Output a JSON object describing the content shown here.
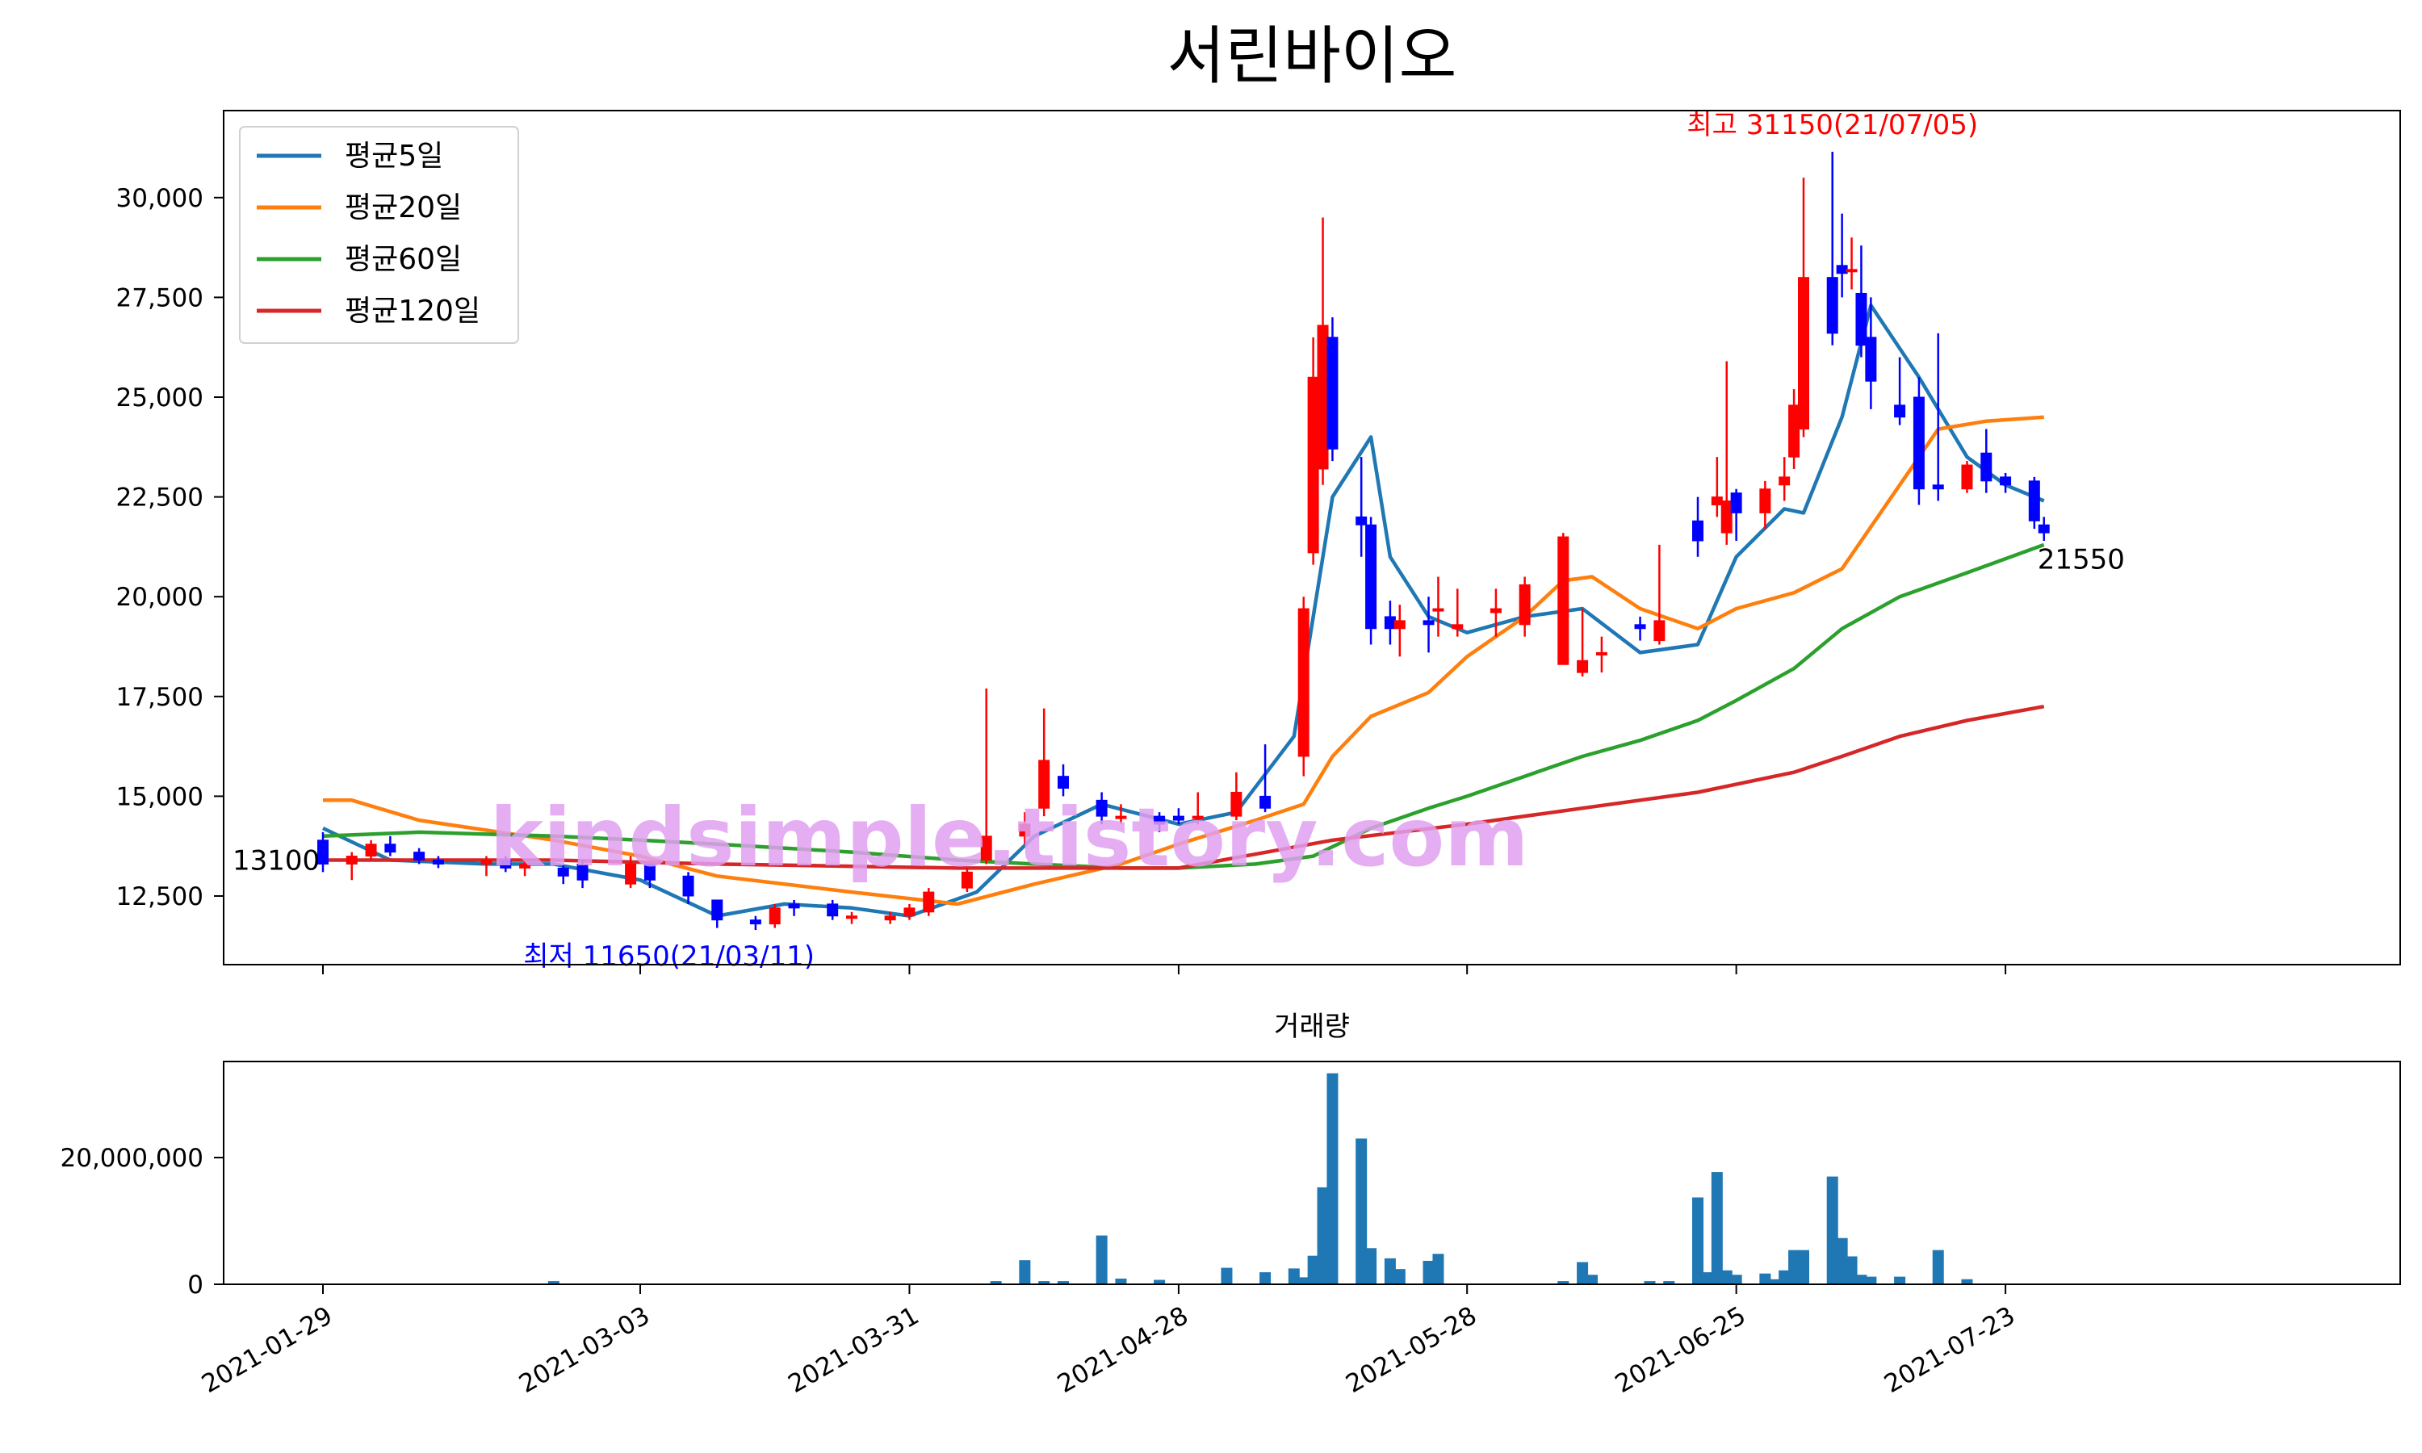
{
  "chart_data": [
    {
      "type": "candlestick",
      "title": "서린바이오",
      "xlabel": "",
      "ylabel": "",
      "ylim": [
        10650,
        32000
      ],
      "yticks": [
        12500,
        15000,
        17500,
        20000,
        22500,
        25000,
        27500,
        30000
      ],
      "ytick_labels": [
        "12,500",
        "15,000",
        "17,500",
        "20,000",
        "22,500",
        "25,000",
        "27,500",
        "30,000"
      ],
      "xticks": [
        "2021-01-29",
        "2021-03-03",
        "2021-03-31",
        "2021-04-28",
        "2021-05-28",
        "2021-06-25",
        "2021-07-23"
      ],
      "grid": false,
      "legend_position": "top-left",
      "colors": {
        "up": "#ff0000",
        "down": "#0000ff"
      },
      "series": [
        {
          "name": "평균5일",
          "color": "#1f77b4",
          "x": [
            "2021-01-29",
            "2021-02-05",
            "2021-02-15",
            "2021-02-22",
            "2021-03-03",
            "2021-03-11",
            "2021-03-18",
            "2021-03-25",
            "2021-03-31",
            "2021-04-07",
            "2021-04-13",
            "2021-04-20",
            "2021-04-28",
            "2021-05-04",
            "2021-05-10",
            "2021-05-14",
            "2021-05-18",
            "2021-05-20",
            "2021-05-24",
            "2021-05-28",
            "2021-06-03",
            "2021-06-09",
            "2021-06-15",
            "2021-06-21",
            "2021-06-25",
            "2021-06-30",
            "2021-07-02",
            "2021-07-06",
            "2021-07-09",
            "2021-07-14",
            "2021-07-19",
            "2021-07-23",
            "2021-07-27"
          ],
          "values": [
            14200,
            13400,
            13300,
            13300,
            12900,
            12000,
            12300,
            12200,
            12000,
            12600,
            14000,
            14800,
            14300,
            14600,
            16500,
            22500,
            24000,
            21000,
            19500,
            19100,
            19500,
            19700,
            18600,
            18800,
            21000,
            22200,
            22100,
            24500,
            27300,
            25500,
            23500,
            22800,
            22400
          ]
        },
        {
          "name": "평균20일",
          "color": "#ff7f0e",
          "x": [
            "2021-01-29",
            "2021-02-01",
            "2021-02-08",
            "2021-02-22",
            "2021-03-03",
            "2021-03-11",
            "2021-03-25",
            "2021-04-05",
            "2021-04-13",
            "2021-04-22",
            "2021-04-28",
            "2021-05-06",
            "2021-05-11",
            "2021-05-14",
            "2021-05-18",
            "2021-05-24",
            "2021-05-28",
            "2021-06-03",
            "2021-06-07",
            "2021-06-10",
            "2021-06-15",
            "2021-06-21",
            "2021-06-25",
            "2021-07-01",
            "2021-07-06",
            "2021-07-12",
            "2021-07-16",
            "2021-07-21",
            "2021-07-27"
          ],
          "values": [
            14900,
            14900,
            14400,
            13900,
            13500,
            13000,
            12600,
            12300,
            12800,
            13300,
            13800,
            14400,
            14800,
            16000,
            17000,
            17600,
            18500,
            19500,
            20400,
            20500,
            19700,
            19200,
            19700,
            20100,
            20700,
            22800,
            24200,
            24400,
            24500
          ]
        },
        {
          "name": "평균60일",
          "color": "#2ca02c",
          "x": [
            "2021-01-29",
            "2021-02-08",
            "2021-02-22",
            "2021-03-03",
            "2021-03-11",
            "2021-03-25",
            "2021-04-05",
            "2021-04-13",
            "2021-04-22",
            "2021-04-28",
            "2021-05-06",
            "2021-05-12",
            "2021-05-18",
            "2021-05-24",
            "2021-05-28",
            "2021-06-03",
            "2021-06-09",
            "2021-06-15",
            "2021-06-21",
            "2021-06-25",
            "2021-07-01",
            "2021-07-06",
            "2021-07-12",
            "2021-07-19",
            "2021-07-27"
          ],
          "values": [
            14000,
            14100,
            14000,
            13900,
            13800,
            13600,
            13400,
            13300,
            13200,
            13200,
            13300,
            13500,
            14200,
            14700,
            15000,
            15500,
            16000,
            16400,
            16900,
            17400,
            18200,
            19200,
            20000,
            20600,
            21300
          ]
        },
        {
          "name": "평균120일",
          "color": "#d62728",
          "x": [
            "2021-01-29",
            "2021-02-22",
            "2021-03-11",
            "2021-04-05",
            "2021-04-28",
            "2021-05-14",
            "2021-05-28",
            "2021-06-09",
            "2021-06-21",
            "2021-06-25",
            "2021-07-01",
            "2021-07-06",
            "2021-07-12",
            "2021-07-19",
            "2021-07-27"
          ],
          "values": [
            13400,
            13400,
            13300,
            13200,
            13200,
            13900,
            14300,
            14700,
            15100,
            15300,
            15600,
            16000,
            16500,
            16900,
            17250
          ]
        }
      ],
      "candles": {
        "dates": [
          "2021-01-29",
          "2021-02-01",
          "2021-02-03",
          "2021-02-05",
          "2021-02-08",
          "2021-02-10",
          "2021-02-15",
          "2021-02-17",
          "2021-02-19",
          "2021-02-23",
          "2021-02-25",
          "2021-03-02",
          "2021-03-04",
          "2021-03-08",
          "2021-03-11",
          "2021-03-15",
          "2021-03-17",
          "2021-03-19",
          "2021-03-23",
          "2021-03-25",
          "2021-03-29",
          "2021-03-31",
          "2021-04-02",
          "2021-04-06",
          "2021-04-08",
          "2021-04-12",
          "2021-04-14",
          "2021-04-16",
          "2021-04-20",
          "2021-04-22",
          "2021-04-26",
          "2021-04-28",
          "2021-04-30",
          "2021-05-04",
          "2021-05-07",
          "2021-05-11",
          "2021-05-12",
          "2021-05-13",
          "2021-05-14",
          "2021-05-17",
          "2021-05-18",
          "2021-05-20",
          "2021-05-21",
          "2021-05-24",
          "2021-05-25",
          "2021-05-27",
          "2021-05-31",
          "2021-06-03",
          "2021-06-07",
          "2021-06-09",
          "2021-06-11",
          "2021-06-15",
          "2021-06-17",
          "2021-06-21",
          "2021-06-23",
          "2021-06-24",
          "2021-06-25",
          "2021-06-28",
          "2021-06-30",
          "2021-07-01",
          "2021-07-02",
          "2021-07-05",
          "2021-07-06",
          "2021-07-07",
          "2021-07-08",
          "2021-07-09",
          "2021-07-12",
          "2021-07-14",
          "2021-07-16",
          "2021-07-19",
          "2021-07-21",
          "2021-07-23",
          "2021-07-26",
          "2021-07-27"
        ],
        "open": [
          13900,
          13300,
          13500,
          13800,
          13600,
          13400,
          13300,
          13400,
          13200,
          13200,
          13300,
          12800,
          13300,
          13000,
          12400,
          11900,
          11800,
          12300,
          12300,
          12000,
          11900,
          12000,
          12100,
          12700,
          13400,
          14000,
          14700,
          15500,
          14900,
          14500,
          14500,
          14500,
          14500,
          14500,
          15000,
          16000,
          21100,
          23200,
          26500,
          22000,
          21800,
          19500,
          19200,
          19400,
          19700,
          19200,
          19600,
          19300,
          18300,
          18100,
          18600,
          19300,
          18900,
          21900,
          22300,
          21600,
          22600,
          22100,
          22800,
          23500,
          24200,
          28000,
          28300,
          28200,
          27600,
          26500,
          24800,
          25000,
          22800,
          22700,
          23600,
          23000,
          22900,
          21800
        ],
        "close": [
          13300,
          13500,
          13800,
          13600,
          13400,
          13300,
          13400,
          13200,
          13300,
          13000,
          12900,
          13300,
          12900,
          12500,
          11900,
          11800,
          12200,
          12200,
          12000,
          12000,
          12000,
          12200,
          12600,
          13100,
          14000,
          14300,
          15900,
          15200,
          14500,
          14500,
          14300,
          14400,
          14500,
          15100,
          14700,
          19700,
          25500,
          26800,
          23700,
          21800,
          19200,
          19200,
          19400,
          19300,
          19700,
          19300,
          19700,
          20300,
          21500,
          18400,
          18600,
          19200,
          19400,
          21400,
          22500,
          22400,
          22100,
          22700,
          23000,
          24800,
          28000,
          26600,
          28100,
          28200,
          26300,
          25400,
          24500,
          22700,
          22700,
          23300,
          22900,
          22800,
          21900,
          21600
        ],
        "high": [
          14100,
          13600,
          13900,
          14000,
          13700,
          13500,
          13500,
          13500,
          13400,
          13300,
          13400,
          13500,
          13300,
          13100,
          12400,
          12000,
          12300,
          12400,
          12400,
          12100,
          12100,
          12300,
          12700,
          13200,
          17700,
          14600,
          17200,
          15800,
          15100,
          14800,
          14600,
          14700,
          15100,
          15600,
          16300,
          20000,
          26500,
          29500,
          27000,
          23500,
          22000,
          19900,
          19800,
          20000,
          20500,
          20200,
          20200,
          20500,
          21600,
          19700,
          19000,
          19500,
          21300,
          22500,
          23500,
          25900,
          22700,
          22900,
          23500,
          25200,
          30500,
          31150,
          29600,
          29000,
          28800,
          27500,
          26000,
          25500,
          26600,
          23400,
          24200,
          23100,
          23000,
          22000
        ],
        "low": [
          13100,
          12900,
          13400,
          13500,
          13300,
          13200,
          13000,
          13100,
          13000,
          12800,
          12700,
          12700,
          12700,
          12300,
          11700,
          11650,
          11700,
          12000,
          11900,
          11800,
          11800,
          11900,
          12000,
          12600,
          13300,
          13800,
          14500,
          15000,
          14300,
          14300,
          14100,
          14300,
          14300,
          14400,
          14600,
          15500,
          20800,
          22800,
          23400,
          21000,
          18800,
          18800,
          18500,
          18600,
          19000,
          19000,
          19000,
          19000,
          18300,
          18000,
          18100,
          18900,
          18800,
          21000,
          22000,
          21300,
          21400,
          21700,
          22400,
          23200,
          24000,
          26300,
          27500,
          27700,
          26000,
          24700,
          24300,
          22300,
          22400,
          22600,
          22600,
          22600,
          21700,
          21400
        ]
      },
      "annotations": [
        {
          "text": "최고 31150(21/07/05)",
          "x": "2021-07-05",
          "y": 31150,
          "color": "#ff0000"
        },
        {
          "text": "최저 11650(21/03/11)",
          "x": "2021-03-11",
          "y": 11650,
          "color": "#0000ff"
        },
        {
          "text": "13100",
          "x": "2021-01-29",
          "y": 13100,
          "color": "#000000"
        },
        {
          "text": "21550",
          "x": "2021-07-27",
          "y": 21550,
          "color": "#000000"
        }
      ],
      "watermark": "kindsimple.tistory.com"
    },
    {
      "type": "bar",
      "title": "거래량",
      "ylim": [
        0,
        34800000
      ],
      "yticks": [
        0,
        20000000
      ],
      "ytick_labels": [
        "0",
        "20,000,000"
      ],
      "color": "#1f77b4",
      "x": [
        "2021-02-22",
        "2021-04-09",
        "2021-04-12",
        "2021-04-14",
        "2021-04-16",
        "2021-04-20",
        "2021-04-22",
        "2021-04-26",
        "2021-05-03",
        "2021-05-07",
        "2021-05-10",
        "2021-05-11",
        "2021-05-12",
        "2021-05-13",
        "2021-05-14",
        "2021-05-17",
        "2021-05-18",
        "2021-05-20",
        "2021-05-21",
        "2021-05-24",
        "2021-05-25",
        "2021-06-07",
        "2021-06-09",
        "2021-06-10",
        "2021-06-16",
        "2021-06-18",
        "2021-06-21",
        "2021-06-22",
        "2021-06-23",
        "2021-06-24",
        "2021-06-25",
        "2021-06-28",
        "2021-06-29",
        "2021-06-30",
        "2021-07-01",
        "2021-07-02",
        "2021-07-05",
        "2021-07-06",
        "2021-07-07",
        "2021-07-08",
        "2021-07-09",
        "2021-07-12",
        "2021-07-16",
        "2021-07-19"
      ],
      "values": [
        500000,
        500000,
        3800000,
        500000,
        500000,
        7700000,
        900000,
        700000,
        2600000,
        1900000,
        2500000,
        1100000,
        4500000,
        15300000,
        33300000,
        23000000,
        5700000,
        4100000,
        2400000,
        3700000,
        4800000,
        500000,
        3500000,
        1500000,
        500000,
        500000,
        13700000,
        1900000,
        17700000,
        2200000,
        1500000,
        1700000,
        800000,
        2200000,
        5400000,
        5400000,
        17000000,
        7300000,
        4400000,
        1500000,
        1200000,
        1200000,
        5400000,
        800000
      ]
    }
  ]
}
